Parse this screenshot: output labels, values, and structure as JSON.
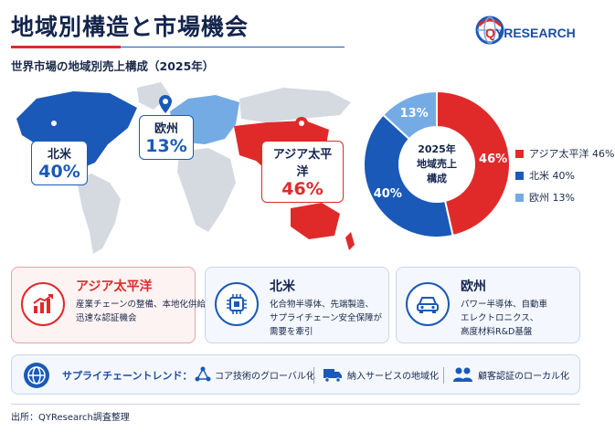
{
  "header": {
    "title": "地域別構造と市場機会",
    "subtitle": "世界市場の地域別売上構成（2025年）"
  },
  "logo": {
    "q": "Q",
    "rest": "YRESEARCH"
  },
  "map_callouts": [
    {
      "name": "北米",
      "pct": "40%"
    },
    {
      "name": "欧州",
      "pct": "13%"
    },
    {
      "name": "アジア太平洋",
      "pct": "46%"
    }
  ],
  "chart_data": {
    "type": "pie",
    "center_label": [
      "2025年",
      "地域売上",
      "構成"
    ],
    "categories": [
      "アジア太平洋",
      "北米",
      "欧州"
    ],
    "values": [
      46,
      40,
      13
    ],
    "value_labels": [
      "46%",
      "40%",
      "13%"
    ],
    "legend_labels": [
      "アジア太平洋 46%",
      "北米 40%",
      "欧州 13%"
    ],
    "colors": [
      "#e02a2a",
      "#1b59b8",
      "#74abe4"
    ],
    "legend": "right"
  },
  "cards": [
    {
      "title": "アジア太平洋",
      "icon": "growth-chart-icon",
      "lines": [
        "産業チェーンの整備、本地化供給、",
        "迅速な認証機会"
      ]
    },
    {
      "title": "北米",
      "icon": "chip-icon",
      "lines": [
        "化合物半導体、先端製造、",
        "サプライチェーン安全保障が",
        "需要を牽引"
      ]
    },
    {
      "title": "欧州",
      "icon": "car-icon",
      "lines": [
        "パワー半導体、自動車",
        "エレクトロニクス、",
        "高度材料R&D基盤"
      ]
    }
  ],
  "trends": {
    "label": "サプライチェーントレンド：",
    "items": [
      {
        "icon": "network-icon",
        "text": "コア技術のグローバル化"
      },
      {
        "icon": "truck-icon",
        "text": "納入サービスの地域化"
      },
      {
        "icon": "people-icon",
        "text": "顧客認証のローカル化"
      }
    ]
  },
  "footer": {
    "source": "出所：QYResearch調査整理"
  }
}
